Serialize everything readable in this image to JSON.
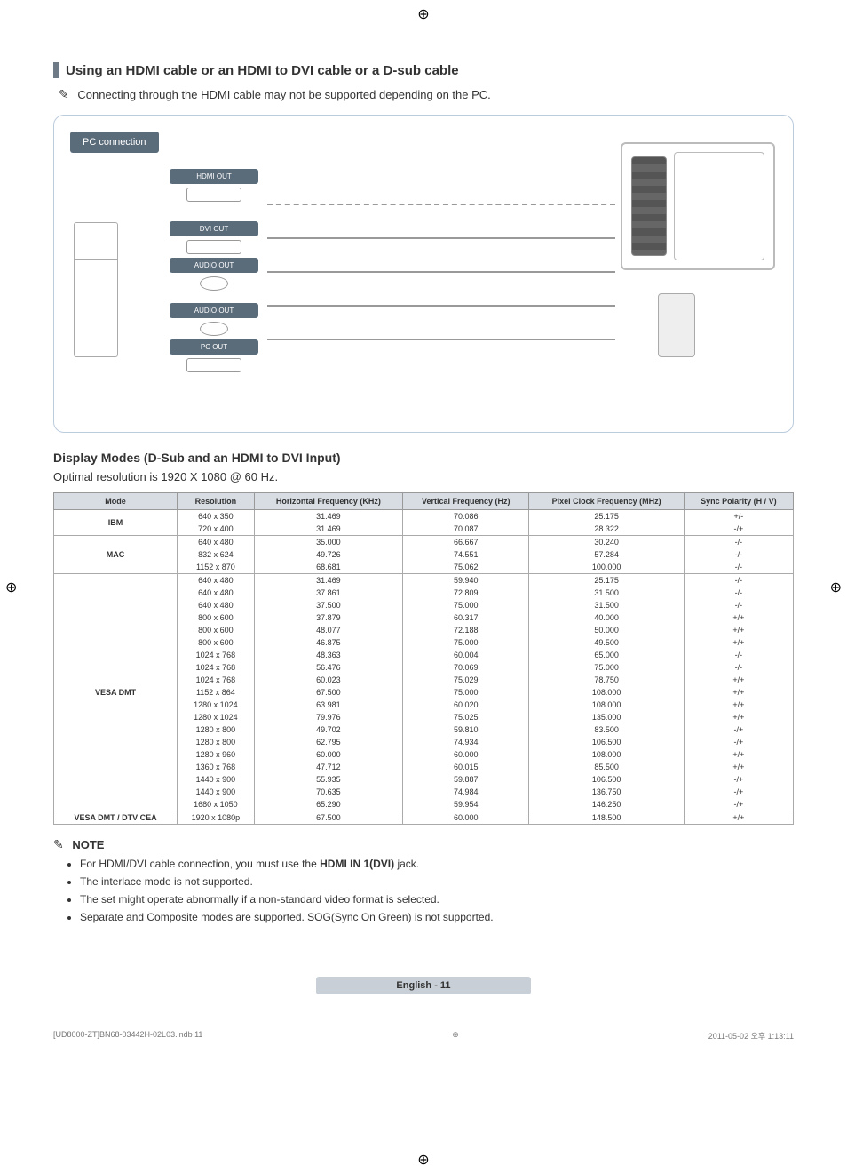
{
  "section_title": "Using an HDMI cable or an HDMI to DVI cable or a D-sub cable",
  "top_note": "Connecting through the HDMI cable may not be supported depending on the PC.",
  "diagram": {
    "pc_connection": "PC connection",
    "ports": [
      "HDMI OUT",
      "DVI OUT",
      "AUDIO OUT",
      "AUDIO OUT",
      "PC OUT"
    ]
  },
  "subsection": "Display Modes (D-Sub and an HDMI to DVI Input)",
  "optimal": "Optimal resolution is 1920 X 1080 @ 60 Hz.",
  "table": {
    "headers": [
      "Mode",
      "Resolution",
      "Horizontal Frequency (KHz)",
      "Vertical Frequency (Hz)",
      "Pixel Clock Frequency (MHz)",
      "Sync Polarity (H / V)"
    ],
    "groups": [
      {
        "mode": "IBM",
        "rows": [
          [
            "640 x 350",
            "31.469",
            "70.086",
            "25.175",
            "+/-"
          ],
          [
            "720 x 400",
            "31.469",
            "70.087",
            "28.322",
            "-/+"
          ]
        ]
      },
      {
        "mode": "MAC",
        "rows": [
          [
            "640 x 480",
            "35.000",
            "66.667",
            "30.240",
            "-/-"
          ],
          [
            "832 x 624",
            "49.726",
            "74.551",
            "57.284",
            "-/-"
          ],
          [
            "1152 x 870",
            "68.681",
            "75.062",
            "100.000",
            "-/-"
          ]
        ]
      },
      {
        "mode": "VESA DMT",
        "rows": [
          [
            "640 x 480",
            "31.469",
            "59.940",
            "25.175",
            "-/-"
          ],
          [
            "640 x 480",
            "37.861",
            "72.809",
            "31.500",
            "-/-"
          ],
          [
            "640 x 480",
            "37.500",
            "75.000",
            "31.500",
            "-/-"
          ],
          [
            "800 x 600",
            "37.879",
            "60.317",
            "40.000",
            "+/+"
          ],
          [
            "800 x 600",
            "48.077",
            "72.188",
            "50.000",
            "+/+"
          ],
          [
            "800 x 600",
            "46.875",
            "75.000",
            "49.500",
            "+/+"
          ],
          [
            "1024 x 768",
            "48.363",
            "60.004",
            "65.000",
            "-/-"
          ],
          [
            "1024 x 768",
            "56.476",
            "70.069",
            "75.000",
            "-/-"
          ],
          [
            "1024 x 768",
            "60.023",
            "75.029",
            "78.750",
            "+/+"
          ],
          [
            "1152 x 864",
            "67.500",
            "75.000",
            "108.000",
            "+/+"
          ],
          [
            "1280 x 1024",
            "63.981",
            "60.020",
            "108.000",
            "+/+"
          ],
          [
            "1280 x 1024",
            "79.976",
            "75.025",
            "135.000",
            "+/+"
          ],
          [
            "1280 x 800",
            "49.702",
            "59.810",
            "83.500",
            "-/+"
          ],
          [
            "1280 x 800",
            "62.795",
            "74.934",
            "106.500",
            "-/+"
          ],
          [
            "1280 x 960",
            "60.000",
            "60.000",
            "108.000",
            "+/+"
          ],
          [
            "1360 x 768",
            "47.712",
            "60.015",
            "85.500",
            "+/+"
          ],
          [
            "1440 x 900",
            "55.935",
            "59.887",
            "106.500",
            "-/+"
          ],
          [
            "1440 x 900",
            "70.635",
            "74.984",
            "136.750",
            "-/+"
          ],
          [
            "1680 x 1050",
            "65.290",
            "59.954",
            "146.250",
            "-/+"
          ]
        ]
      },
      {
        "mode": "VESA DMT / DTV CEA",
        "rows": [
          [
            "1920 x 1080p",
            "67.500",
            "60.000",
            "148.500",
            "+/+"
          ]
        ]
      }
    ]
  },
  "notes": {
    "heading": "NOTE",
    "items": [
      "For HDMI/DVI cable connection, you must use the HDMI IN 1(DVI) jack.",
      "The interlace mode is not supported.",
      "The set might operate abnormally if a non-standard video format is selected.",
      "Separate and Composite modes are supported. SOG(Sync On Green) is not supported."
    ]
  },
  "page_label": "English - 11",
  "print_left": "[UD8000-ZT]BN68-03442H-02L03.indb   11",
  "print_right": "2011-05-02   오후 1:13:11"
}
